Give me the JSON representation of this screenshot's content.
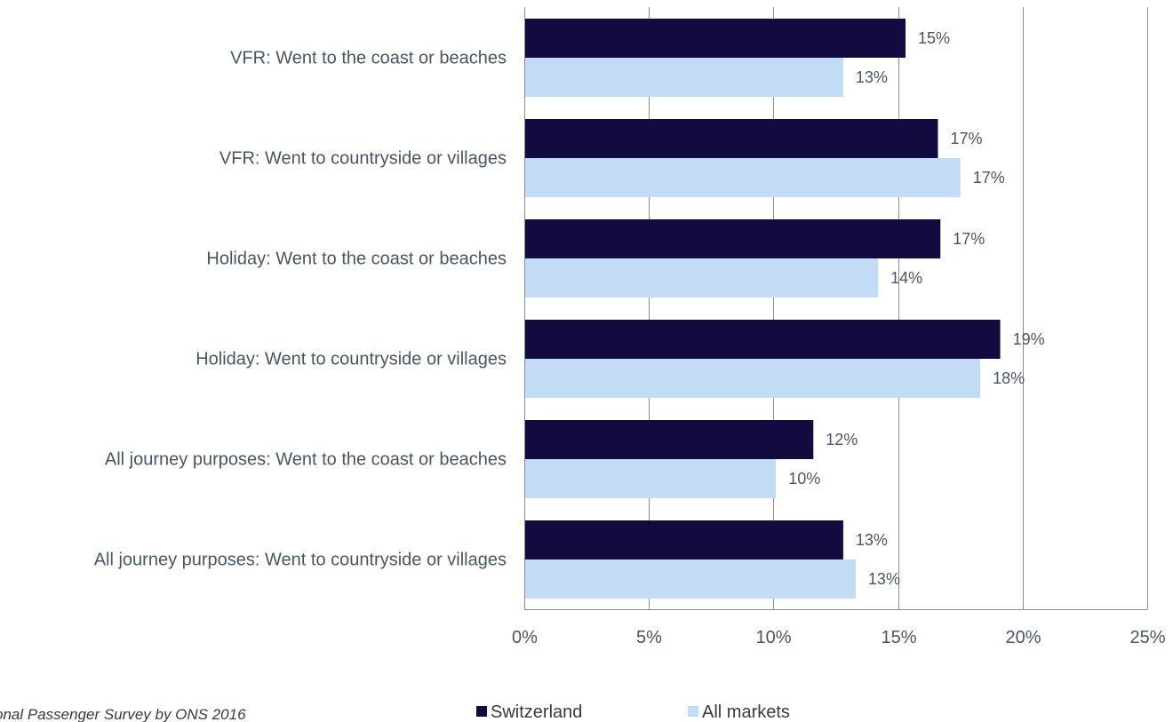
{
  "chart_data": {
    "type": "bar",
    "orientation": "horizontal",
    "categories": [
      "VFR: Went to the coast or beaches",
      "VFR: Went to countryside or villages",
      "Holiday: Went to the coast or beaches",
      "Holiday: Went to countryside or villages",
      "All journey purposes: Went to the coast or beaches",
      "All journey purposes: Went to countryside or villages"
    ],
    "series": [
      {
        "name": "Switzerland",
        "color": "#130a3f",
        "values": [
          15.3,
          16.6,
          16.7,
          19.1,
          11.6,
          12.8
        ],
        "labels": [
          "15%",
          "17%",
          "17%",
          "19%",
          "12%",
          "13%"
        ]
      },
      {
        "name": "All markets",
        "color": "#c2dcf6",
        "values": [
          12.8,
          17.5,
          14.2,
          18.3,
          10.1,
          13.3
        ],
        "labels": [
          "13%",
          "17%",
          "14%",
          "18%",
          "10%",
          "13%"
        ]
      }
    ],
    "xlim": [
      0,
      25
    ],
    "xticks": [
      0,
      5,
      10,
      15,
      20,
      25
    ],
    "xtick_labels": [
      "0%",
      "5%",
      "10%",
      "15%",
      "20%",
      "25%"
    ],
    "grid": "vertical",
    "legend": "bottom",
    "xlabel": "",
    "ylabel": ""
  },
  "source": "onal Passenger Survey by ONS 2016"
}
